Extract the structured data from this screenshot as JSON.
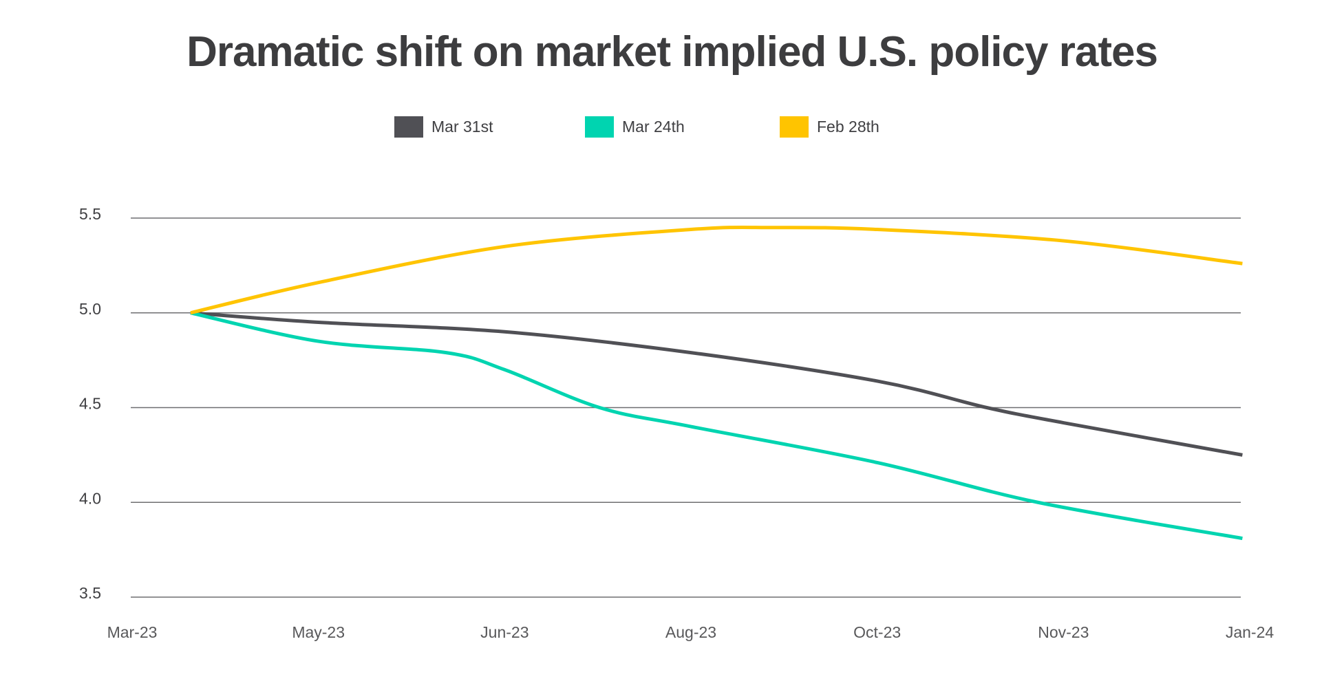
{
  "chart_data": {
    "type": "line",
    "title": "Dramatic shift on market implied U.S. policy rates",
    "xlabel": "",
    "ylabel": "",
    "x_ticks": [
      "Mar-23",
      "May-23",
      "Jun-23",
      "Aug-23",
      "Oct-23",
      "Nov-23",
      "Jan-24"
    ],
    "xlim": [
      "2023-03-01",
      "2024-01-01"
    ],
    "y_ticks": [
      "5.5",
      "5.0",
      "4.5",
      "4.0",
      "3.5"
    ],
    "ylim": [
      3.5,
      5.5
    ],
    "grid": "horizontal",
    "legend_position": "top-center",
    "series": [
      {
        "name": "Mar 31st",
        "color": "#505055",
        "x": [
          "2023-03-17",
          "2023-04-21",
          "2023-06-11",
          "2023-08-01",
          "2023-09-21",
          "2023-10-21",
          "2023-11-11",
          "2023-12-30"
        ],
        "y": [
          5.0,
          4.95,
          4.9,
          4.79,
          4.64,
          4.5,
          4.42,
          4.25
        ]
      },
      {
        "name": "Mar 24th",
        "color": "#00d4b0",
        "x": [
          "2023-03-17",
          "2023-04-21",
          "2023-05-26",
          "2023-06-11",
          "2023-07-07",
          "2023-08-01",
          "2023-09-21",
          "2023-11-04",
          "2023-12-30"
        ],
        "y": [
          5.0,
          4.85,
          4.79,
          4.7,
          4.5,
          4.4,
          4.21,
          4.0,
          3.81
        ]
      },
      {
        "name": "Feb 28th",
        "color": "#ffc400",
        "x": [
          "2023-03-17",
          "2023-04-21",
          "2023-06-11",
          "2023-08-01",
          "2023-08-24",
          "2023-09-21",
          "2023-11-11",
          "2023-12-30"
        ],
        "y": [
          5.0,
          5.16,
          5.35,
          5.44,
          5.45,
          5.44,
          5.38,
          5.26
        ]
      }
    ]
  }
}
